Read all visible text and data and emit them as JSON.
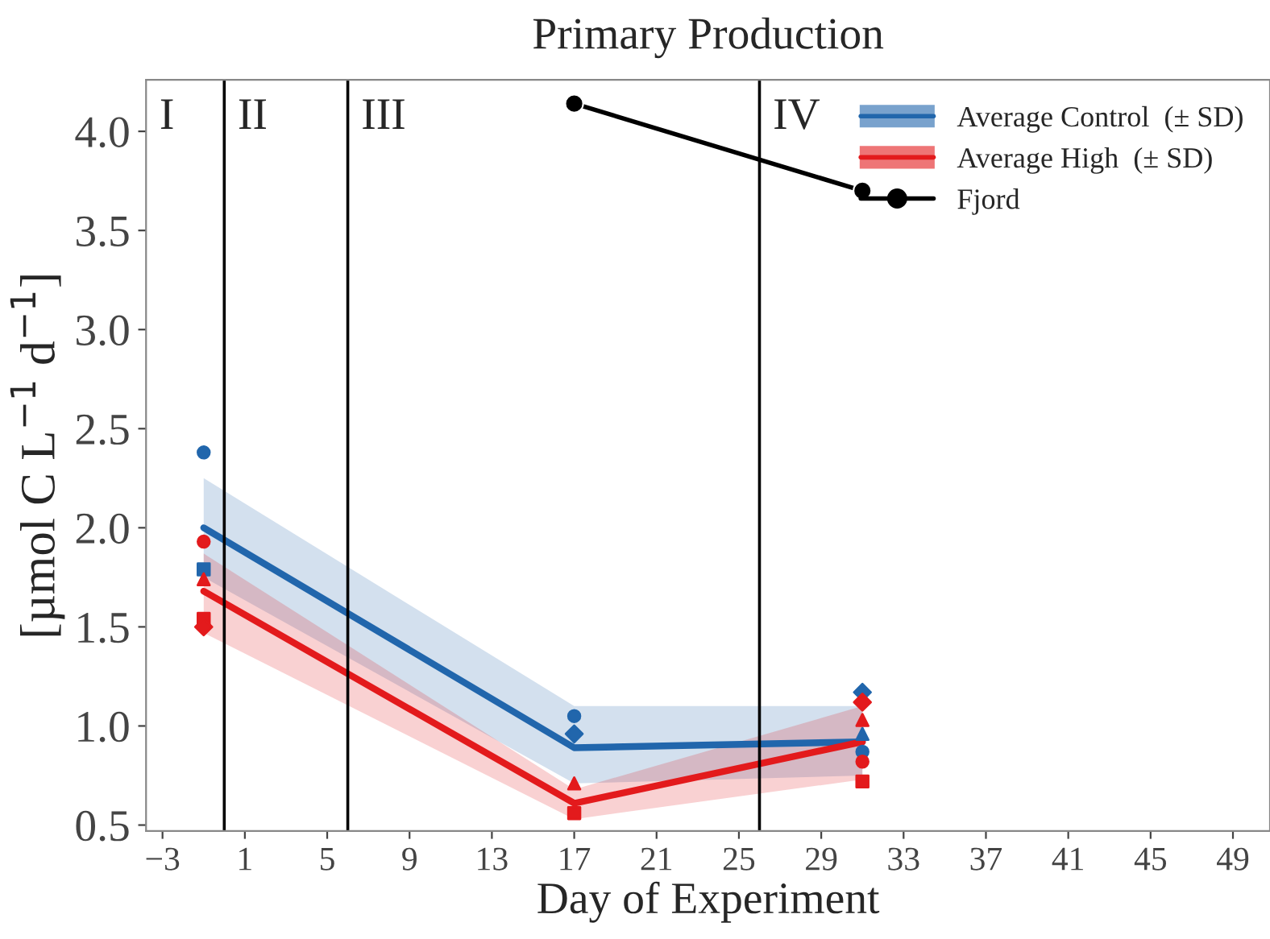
{
  "chart_data": {
    "type": "line",
    "title": "Primary Production",
    "xlabel": "Day of Experiment",
    "ylabel": "[µmol C L$^{−1}$ d$^{−1}$]",
    "x": [
      -1,
      17,
      31
    ],
    "series": [
      {
        "name": "Average Control  (± SD)",
        "color": "#2166ac",
        "values": [
          2.0,
          0.89,
          0.92
        ],
        "lower": [
          1.75,
          0.71,
          0.75
        ],
        "upper": [
          2.25,
          1.1,
          1.1
        ],
        "marker": "none"
      },
      {
        "name": "Average High  (± SD)",
        "color": "#e31a1c",
        "values": [
          1.68,
          0.61,
          0.92
        ],
        "lower": [
          1.47,
          0.53,
          0.73
        ],
        "upper": [
          1.87,
          0.68,
          1.1
        ],
        "marker": "none"
      },
      {
        "name": "Fjord",
        "color": "#000000",
        "x": [
          17,
          31
        ],
        "values": [
          4.14,
          3.7
        ],
        "marker": "circle"
      },
      {
        "type": "scatter",
        "color": "#2166ac",
        "marker": "circle",
        "x": [
          -1,
          17,
          31
        ],
        "values": [
          2.38,
          1.05,
          0.87
        ]
      },
      {
        "type": "scatter",
        "color": "#2166ac",
        "marker": "diamond",
        "x": [
          17,
          31
        ],
        "values": [
          0.96,
          1.17
        ]
      },
      {
        "type": "scatter",
        "color": "#2166ac",
        "marker": "square",
        "x": [
          -1
        ],
        "values": [
          1.79
        ]
      },
      {
        "type": "scatter",
        "color": "#2166ac",
        "marker": "triangle",
        "x": [
          31
        ],
        "values": [
          0.96
        ]
      },
      {
        "type": "scatter",
        "color": "#e31a1c",
        "marker": "circle",
        "x": [
          -1,
          31
        ],
        "values": [
          1.93,
          0.82
        ]
      },
      {
        "type": "scatter",
        "color": "#e31a1c",
        "marker": "triangle",
        "x": [
          -1,
          17,
          31
        ],
        "values": [
          1.74,
          0.71,
          1.03
        ]
      },
      {
        "type": "scatter",
        "color": "#e31a1c",
        "marker": "square",
        "x": [
          -1,
          17,
          31
        ],
        "values": [
          1.54,
          0.56,
          0.72
        ]
      },
      {
        "type": "scatter",
        "color": "#e31a1c",
        "marker": "diamond",
        "x": [
          -1,
          31
        ],
        "values": [
          1.5,
          1.12
        ]
      }
    ],
    "ref_lines": [
      {
        "axis": "x",
        "value": 0,
        "color": "#000000"
      },
      {
        "axis": "x",
        "value": 6,
        "color": "#000000"
      },
      {
        "axis": "x",
        "value": 26,
        "color": "#000000"
      }
    ],
    "annotations": [
      "I",
      "II",
      "III",
      "IV"
    ],
    "xlim": [
      -3.8,
      50.8
    ],
    "ylim": [
      0.47,
      4.26
    ],
    "xticks": [
      {
        "value": -3,
        "label": "−3"
      },
      1,
      5,
      9,
      13,
      17,
      21,
      25,
      29,
      33,
      37,
      41,
      45,
      49
    ],
    "yticks": [
      0.5,
      {
        "value": 1,
        "label": "1.0"
      },
      1.5,
      {
        "value": 2,
        "label": "2.0"
      },
      2.5,
      {
        "value": 3,
        "label": "3.0"
      },
      3.5,
      {
        "value": 4,
        "label": "4.0"
      }
    ],
    "grid": false,
    "legend": "top right"
  }
}
